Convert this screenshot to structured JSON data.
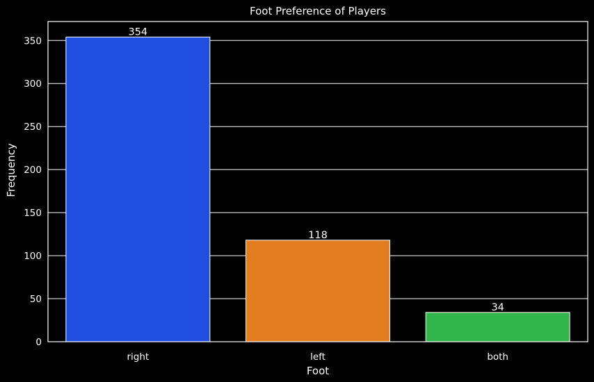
{
  "chart_data": {
    "type": "bar",
    "title": "Foot Preference of Players",
    "xlabel": "Foot",
    "ylabel": "Frequency",
    "categories": [
      "right",
      "left",
      "both"
    ],
    "values": [
      354,
      118,
      34
    ],
    "data_labels": [
      "354",
      "118",
      "34"
    ],
    "colors": [
      "#1f4ee0",
      "#e27d20",
      "#2fb54a"
    ],
    "ylim": [
      0,
      372
    ],
    "yticks": [
      0,
      50,
      100,
      150,
      200,
      250,
      300,
      350
    ],
    "grid": true,
    "background": "#000000",
    "foreground": "#ffffff"
  }
}
